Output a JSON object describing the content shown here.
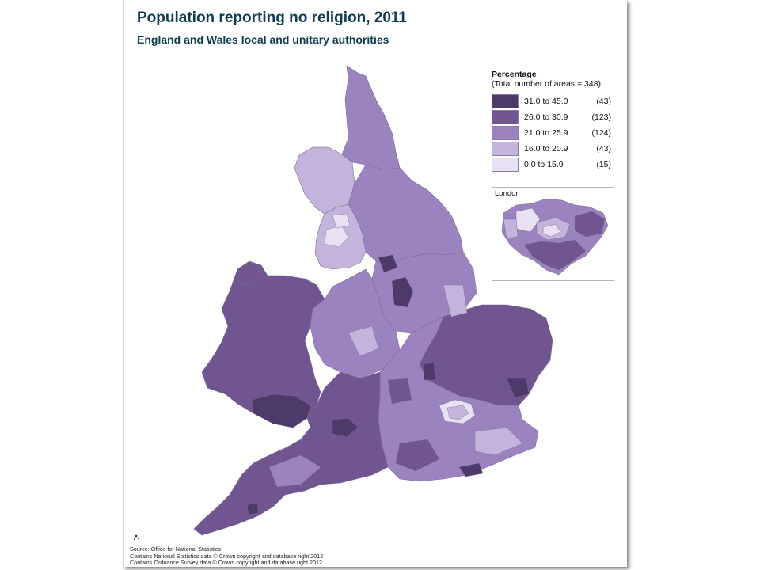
{
  "title": "Population reporting no religion, 2011",
  "subtitle": "England and Wales local and unitary authorities",
  "legend": {
    "heading": "Percentage",
    "total": "(Total number of areas = 348)",
    "classes": [
      {
        "range": "31.0 to 45.0",
        "count": "(43)",
        "color": "#4d3a6b"
      },
      {
        "range": "26.0 to 30.9",
        "count": "(123)",
        "color": "#705591"
      },
      {
        "range": "21.0 to 25.9",
        "count": "(124)",
        "color": "#9a83bf"
      },
      {
        "range": "16.0 to 20.9",
        "count": "(43)",
        "color": "#c3b4dc"
      },
      {
        "range": "0.0 to 15.9",
        "count": "(15)",
        "color": "#e8e0f3"
      }
    ]
  },
  "inset": {
    "label": "London"
  },
  "source": {
    "line1": "Source: Office for National Statistics",
    "line2": "Contains National Statistics data © Crown copyright and database right 2012",
    "line3": "Contains Ordnance Survey data © Crown copyright and database right 2012"
  }
}
